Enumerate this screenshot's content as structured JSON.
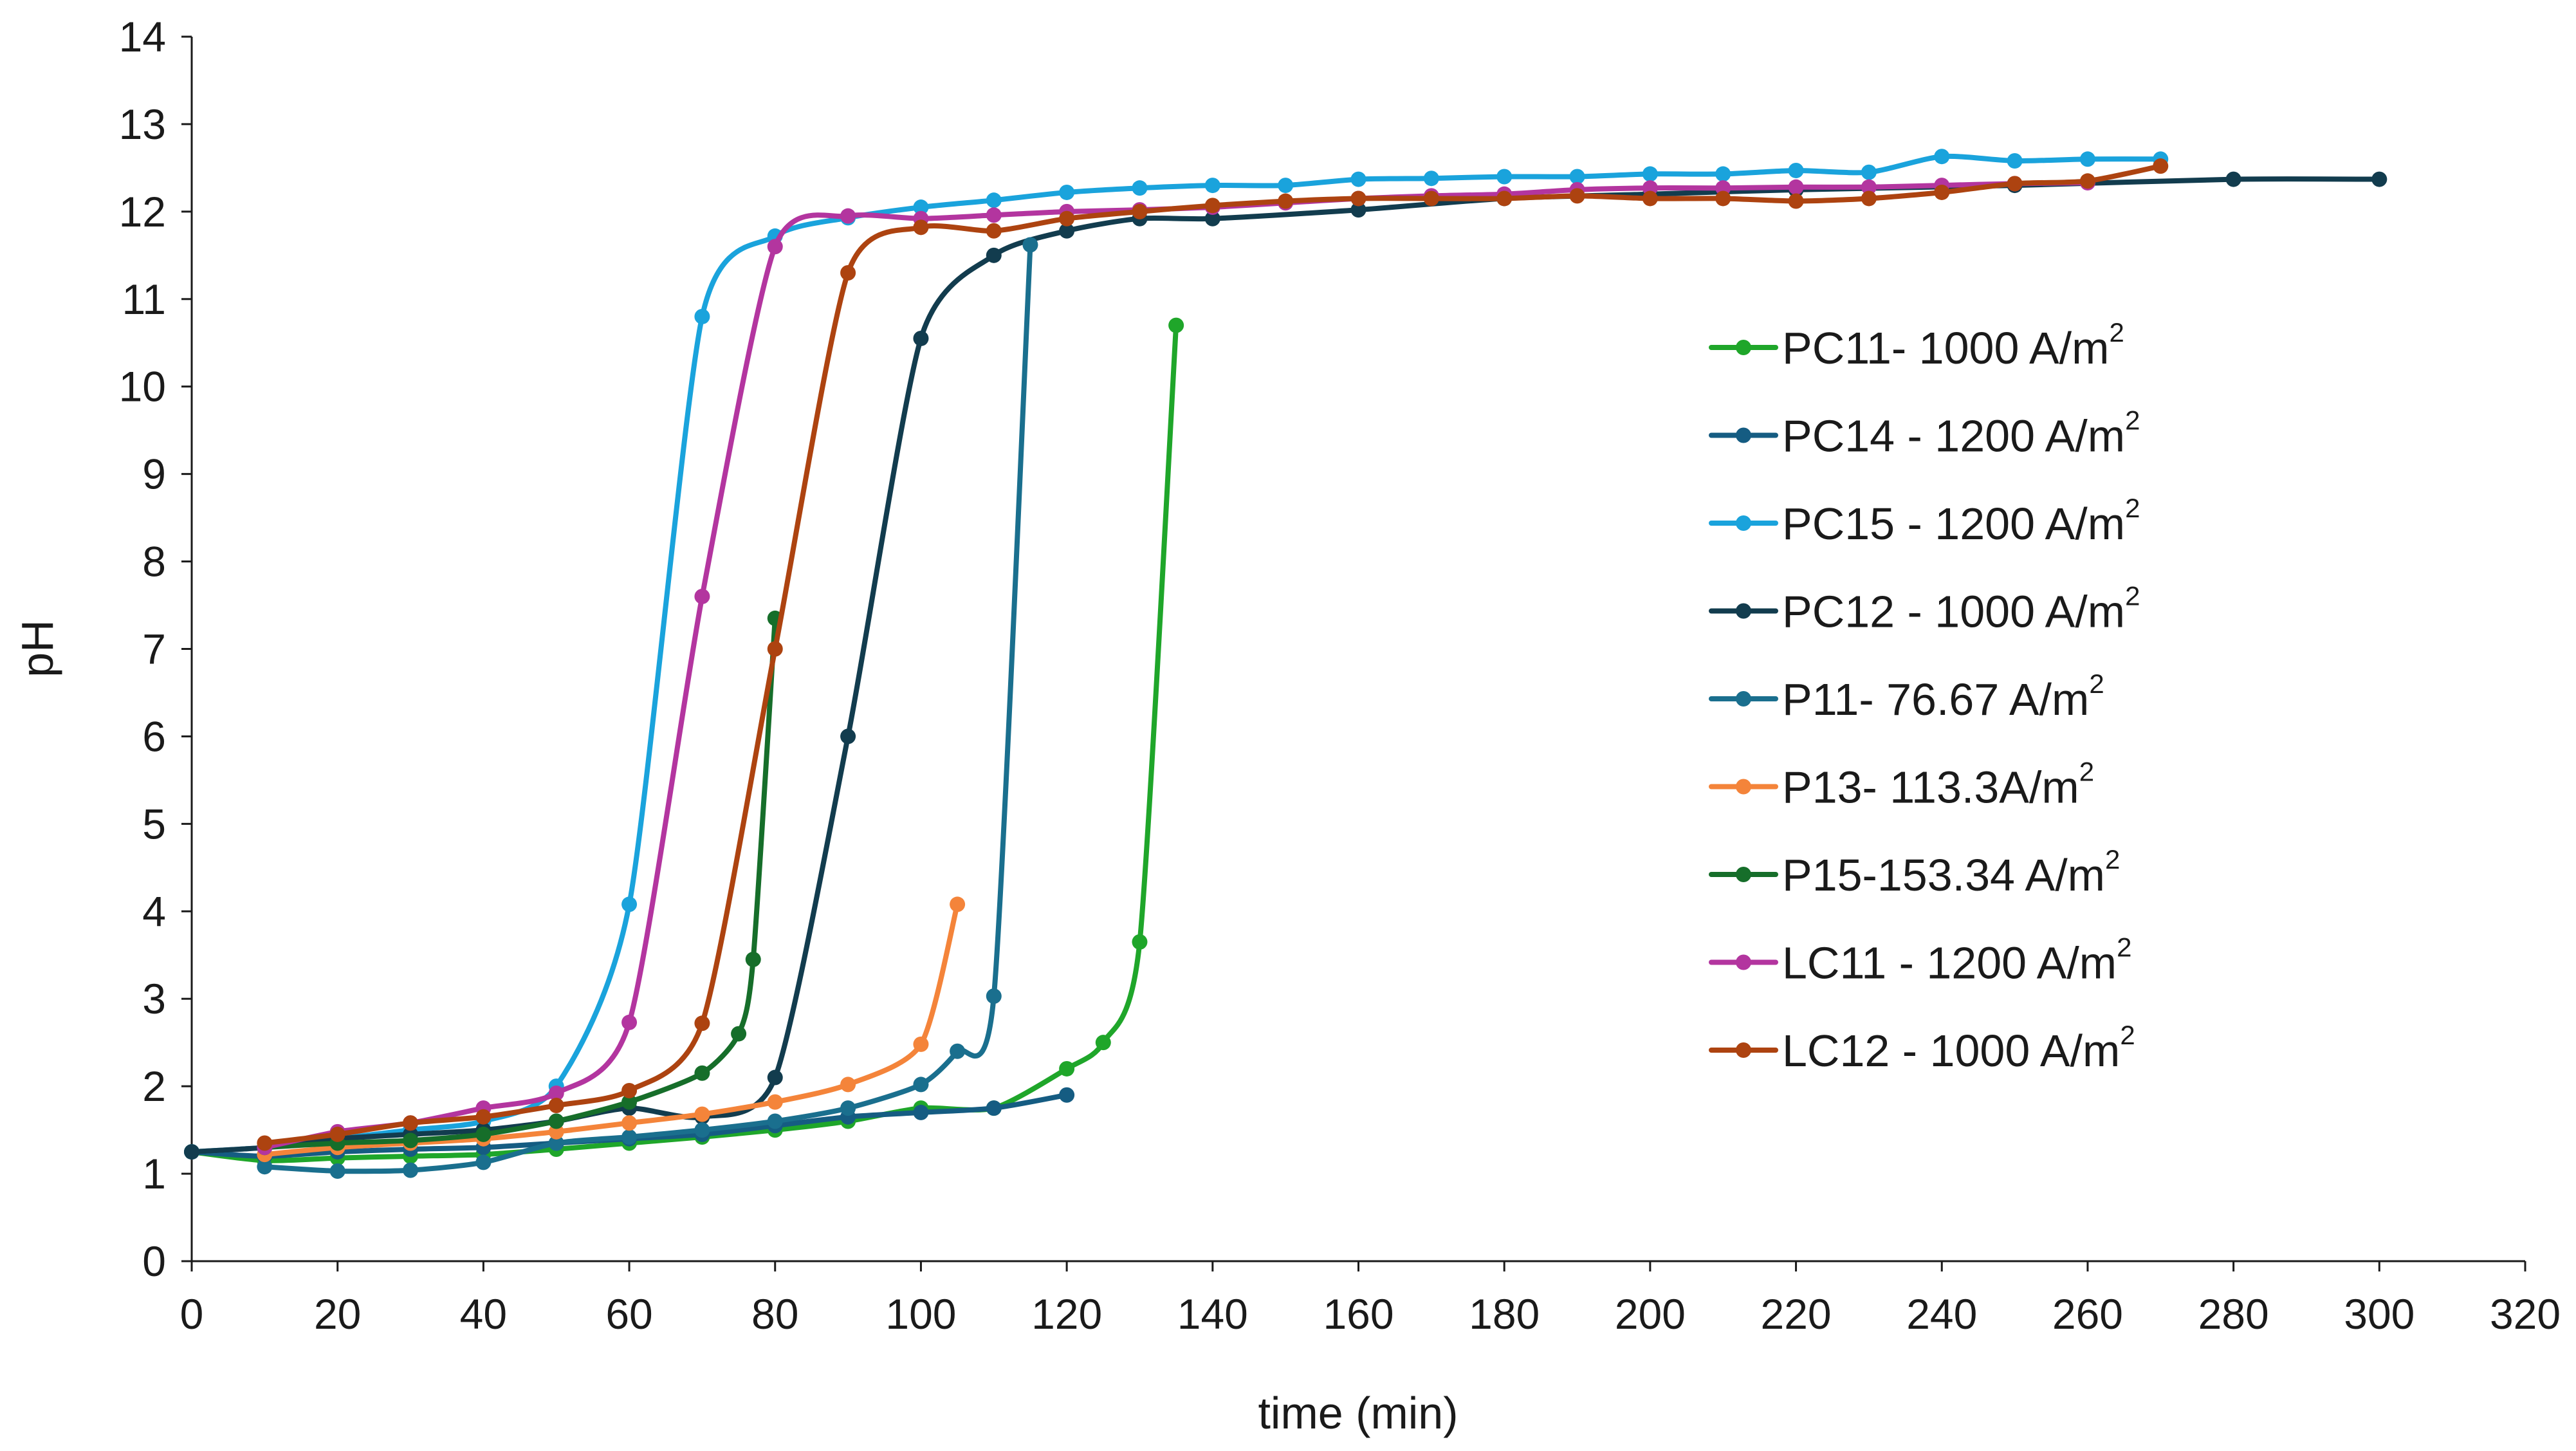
{
  "chart_data": {
    "type": "line",
    "title": "",
    "xlabel": "time  (min)",
    "ylabel": "pH",
    "xlim": [
      0,
      320
    ],
    "ylim": [
      0,
      14
    ],
    "xticks": [
      0,
      20,
      40,
      60,
      80,
      100,
      120,
      140,
      160,
      180,
      200,
      220,
      240,
      260,
      280,
      300,
      320
    ],
    "yticks": [
      0,
      1,
      2,
      3,
      4,
      5,
      6,
      7,
      8,
      9,
      10,
      11,
      12,
      13,
      14
    ],
    "grid": false,
    "legend_position": "right",
    "legend_unit_exponent": "2",
    "series": [
      {
        "name": "PC11- 1000 A/m",
        "color": "#1fa62a",
        "x": [
          0,
          10,
          20,
          30,
          40,
          50,
          60,
          70,
          80,
          90,
          100,
          110,
          120,
          125,
          130,
          135
        ],
        "y": [
          1.25,
          1.15,
          1.18,
          1.2,
          1.22,
          1.28,
          1.35,
          1.42,
          1.5,
          1.6,
          1.75,
          1.75,
          2.2,
          2.5,
          3.65,
          10.7
        ]
      },
      {
        "name": "PC14 - 1200 A/m",
        "color": "#155c82",
        "x": [
          0,
          10,
          20,
          30,
          40,
          50,
          60,
          70,
          80,
          90,
          100,
          110,
          120
        ],
        "y": [
          1.25,
          1.2,
          1.25,
          1.28,
          1.3,
          1.35,
          1.4,
          1.45,
          1.55,
          1.65,
          1.7,
          1.75,
          1.9
        ]
      },
      {
        "name": "PC15 - 1200 A/m",
        "color": "#1aa3dc",
        "x": [
          0,
          10,
          20,
          30,
          40,
          50,
          60,
          70,
          80,
          90,
          100,
          110,
          120,
          130,
          140,
          150,
          160,
          170,
          180,
          190,
          200,
          210,
          220,
          230,
          240,
          250,
          260,
          270
        ],
        "y": [
          1.25,
          1.3,
          1.4,
          1.5,
          1.6,
          2.0,
          4.08,
          10.8,
          11.72,
          11.93,
          12.05,
          12.13,
          12.22,
          12.27,
          12.3,
          12.3,
          12.37,
          12.38,
          12.4,
          12.4,
          12.43,
          12.43,
          12.47,
          12.45,
          12.63,
          12.58,
          12.6,
          12.6
        ]
      },
      {
        "name": "PC12 - 1000 A/m",
        "color": "#123c4e",
        "x": [
          0,
          10,
          20,
          30,
          40,
          50,
          60,
          70,
          80,
          90,
          100,
          110,
          120,
          130,
          140,
          160,
          180,
          200,
          220,
          250,
          280,
          300
        ],
        "y": [
          1.25,
          1.3,
          1.4,
          1.45,
          1.5,
          1.6,
          1.75,
          1.65,
          2.1,
          6.0,
          10.55,
          11.5,
          11.78,
          11.92,
          11.92,
          12.02,
          12.15,
          12.2,
          12.25,
          12.3,
          12.37,
          12.37
        ]
      },
      {
        "name": "P11- 76.67 A/m",
        "color": "#1a6f8e",
        "x": [
          10,
          20,
          30,
          40,
          50,
          60,
          70,
          80,
          90,
          100,
          105,
          110,
          115
        ],
        "y": [
          1.08,
          1.03,
          1.04,
          1.13,
          1.35,
          1.42,
          1.5,
          1.6,
          1.75,
          2.02,
          2.4,
          3.03,
          11.62
        ]
      },
      {
        "name": "P13- 113.3A/m",
        "color": "#f4843a",
        "x": [
          10,
          20,
          30,
          40,
          50,
          60,
          70,
          80,
          90,
          100,
          105
        ],
        "y": [
          1.22,
          1.3,
          1.35,
          1.4,
          1.48,
          1.58,
          1.68,
          1.82,
          2.02,
          2.48,
          4.08
        ]
      },
      {
        "name": "P15-153.34 A/m",
        "color": "#166e2a",
        "x": [
          10,
          20,
          30,
          40,
          50,
          60,
          70,
          75,
          77,
          80
        ],
        "y": [
          1.3,
          1.35,
          1.38,
          1.45,
          1.6,
          1.82,
          2.15,
          2.6,
          3.45,
          7.35
        ]
      },
      {
        "name": "LC11 - 1200 A/m",
        "color": "#b3359f",
        "x": [
          10,
          20,
          30,
          40,
          50,
          60,
          70,
          80,
          90,
          100,
          110,
          120,
          130,
          140,
          150,
          160,
          170,
          180,
          190,
          200,
          210,
          220,
          230,
          240,
          250,
          260
        ],
        "y": [
          1.3,
          1.48,
          1.58,
          1.75,
          1.92,
          2.73,
          7.6,
          11.6,
          11.95,
          11.92,
          11.96,
          12.0,
          12.02,
          12.05,
          12.1,
          12.15,
          12.18,
          12.2,
          12.25,
          12.27,
          12.27,
          12.28,
          12.28,
          12.3,
          12.32,
          12.33
        ]
      },
      {
        "name": "LC12 - 1000 A/m",
        "color": "#ad4310",
        "x": [
          10,
          20,
          30,
          40,
          50,
          60,
          70,
          80,
          90,
          100,
          110,
          120,
          130,
          140,
          150,
          160,
          170,
          180,
          190,
          200,
          210,
          220,
          230,
          240,
          250,
          260,
          270
        ],
        "y": [
          1.35,
          1.45,
          1.58,
          1.65,
          1.78,
          1.95,
          2.72,
          7.0,
          11.3,
          11.82,
          11.78,
          11.92,
          12.0,
          12.07,
          12.12,
          12.15,
          12.15,
          12.15,
          12.18,
          12.15,
          12.15,
          12.12,
          12.15,
          12.22,
          12.32,
          12.35,
          12.52
        ]
      }
    ]
  }
}
